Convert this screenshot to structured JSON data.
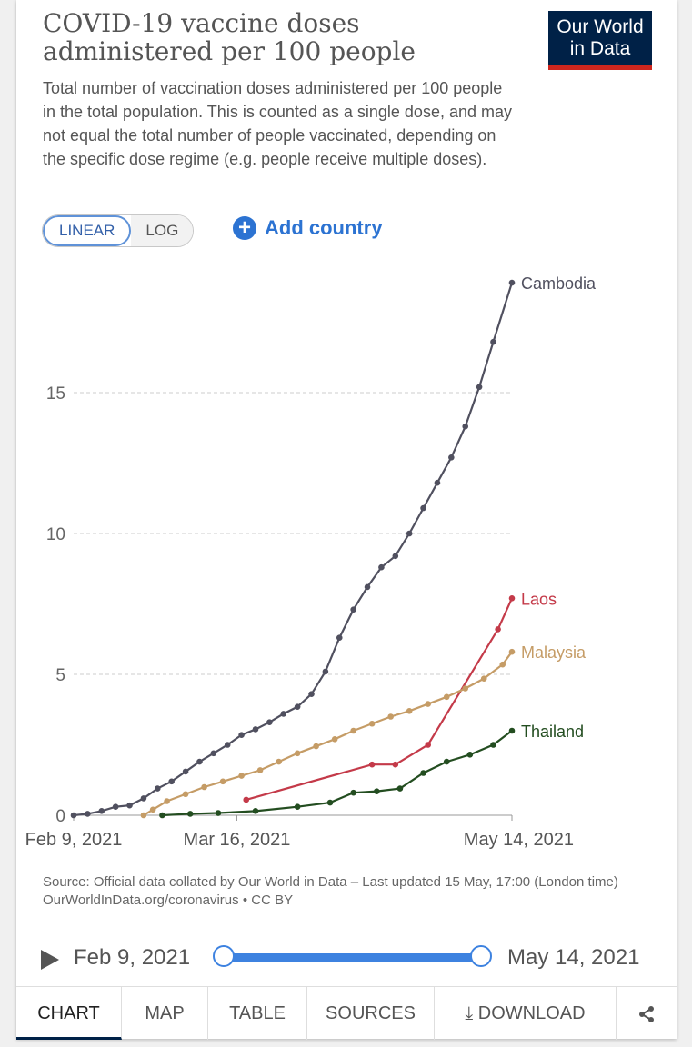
{
  "title": "COVID-19 vaccine doses administered per 100 people",
  "subtitle": "Total number of vaccination doses administered per 100 people in the total population. This is counted as a single dose, and may not equal the total number of people vaccinated, depending on the specific dose regime (e.g. people receive multiple doses).",
  "logo": {
    "line1": "Our World",
    "line2": "in Data"
  },
  "controls": {
    "linear": "LINEAR",
    "log": "LOG",
    "add_country": "Add country"
  },
  "chart_data": {
    "type": "line",
    "title": "COVID-19 vaccine doses administered per 100 people",
    "y_ticks": [
      "0",
      "5",
      "10",
      "15"
    ],
    "ylim": [
      0,
      19
    ],
    "x_ticks": [
      "Feb 9, 2021",
      "Mar 16, 2021",
      "May 14, 2021"
    ],
    "xlim": [
      "2021-02-09",
      "2021-05-14"
    ],
    "grid": "horizontal dashed",
    "legend": "inline-right",
    "series": [
      {
        "name": "Cambodia",
        "color": "#50505f",
        "points": [
          [
            "2021-02-09",
            0
          ],
          [
            "2021-02-12",
            0.05
          ],
          [
            "2021-02-15",
            0.15
          ],
          [
            "2021-02-18",
            0.3
          ],
          [
            "2021-02-21",
            0.35
          ],
          [
            "2021-02-24",
            0.6
          ],
          [
            "2021-02-27",
            0.95
          ],
          [
            "2021-03-02",
            1.2
          ],
          [
            "2021-03-05",
            1.55
          ],
          [
            "2021-03-08",
            1.9
          ],
          [
            "2021-03-11",
            2.2
          ],
          [
            "2021-03-14",
            2.5
          ],
          [
            "2021-03-17",
            2.85
          ],
          [
            "2021-03-20",
            3.05
          ],
          [
            "2021-03-23",
            3.3
          ],
          [
            "2021-03-26",
            3.6
          ],
          [
            "2021-03-29",
            3.85
          ],
          [
            "2021-04-01",
            4.3
          ],
          [
            "2021-04-04",
            5.1
          ],
          [
            "2021-04-07",
            6.3
          ],
          [
            "2021-04-10",
            7.3
          ],
          [
            "2021-04-13",
            8.1
          ],
          [
            "2021-04-16",
            8.8
          ],
          [
            "2021-04-19",
            9.2
          ],
          [
            "2021-04-22",
            10.0
          ],
          [
            "2021-04-25",
            10.9
          ],
          [
            "2021-04-28",
            11.8
          ],
          [
            "2021-05-01",
            12.7
          ],
          [
            "2021-05-04",
            13.8
          ],
          [
            "2021-05-07",
            15.2
          ],
          [
            "2021-05-10",
            16.8
          ],
          [
            "2021-05-14",
            18.9
          ]
        ]
      },
      {
        "name": "Laos",
        "color": "#c43a49",
        "points": [
          [
            "2021-03-18",
            0.55
          ],
          [
            "2021-04-14",
            1.8
          ],
          [
            "2021-04-19",
            1.8
          ],
          [
            "2021-04-26",
            2.5
          ],
          [
            "2021-05-11",
            6.6
          ],
          [
            "2021-05-14",
            7.7
          ]
        ]
      },
      {
        "name": "Malaysia",
        "color": "#c59c66",
        "points": [
          [
            "2021-02-24",
            0
          ],
          [
            "2021-02-26",
            0.2
          ],
          [
            "2021-03-01",
            0.5
          ],
          [
            "2021-03-05",
            0.75
          ],
          [
            "2021-03-09",
            1.0
          ],
          [
            "2021-03-13",
            1.2
          ],
          [
            "2021-03-17",
            1.4
          ],
          [
            "2021-03-21",
            1.6
          ],
          [
            "2021-03-25",
            1.9
          ],
          [
            "2021-03-29",
            2.2
          ],
          [
            "2021-04-02",
            2.45
          ],
          [
            "2021-04-06",
            2.7
          ],
          [
            "2021-04-10",
            3.0
          ],
          [
            "2021-04-14",
            3.25
          ],
          [
            "2021-04-18",
            3.5
          ],
          [
            "2021-04-22",
            3.7
          ],
          [
            "2021-04-26",
            3.95
          ],
          [
            "2021-04-30",
            4.2
          ],
          [
            "2021-05-04",
            4.5
          ],
          [
            "2021-05-08",
            4.85
          ],
          [
            "2021-05-12",
            5.35
          ],
          [
            "2021-05-14",
            5.8
          ]
        ]
      },
      {
        "name": "Thailand",
        "color": "#234d20",
        "points": [
          [
            "2021-02-28",
            0
          ],
          [
            "2021-03-06",
            0.05
          ],
          [
            "2021-03-12",
            0.08
          ],
          [
            "2021-03-20",
            0.15
          ],
          [
            "2021-03-29",
            0.3
          ],
          [
            "2021-04-05",
            0.45
          ],
          [
            "2021-04-10",
            0.8
          ],
          [
            "2021-04-15",
            0.85
          ],
          [
            "2021-04-20",
            0.95
          ],
          [
            "2021-04-25",
            1.5
          ],
          [
            "2021-04-30",
            1.9
          ],
          [
            "2021-05-05",
            2.15
          ],
          [
            "2021-05-10",
            2.5
          ],
          [
            "2021-05-14",
            3.0
          ]
        ]
      }
    ]
  },
  "source": {
    "line1": "Source: Official data collated by Our World in Data – Last updated 15 May, 17:00 (London time)",
    "line2": "OurWorldInData.org/coronavirus • CC BY"
  },
  "timeline": {
    "start": "Feb 9, 2021",
    "end": "May 14, 2021"
  },
  "tabs": [
    "CHART",
    "MAP",
    "TABLE",
    "SOURCES",
    "DOWNLOAD"
  ]
}
